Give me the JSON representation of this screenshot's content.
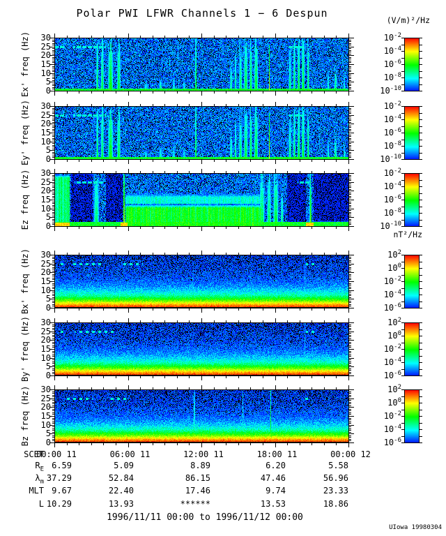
{
  "title": "Polar PWI LFWR Channels 1 − 6 Despun",
  "footer_range": "1996/11/11 00:00 to 1996/11/12 00:00",
  "credit": "UIowa 19980304",
  "chart_data": {
    "type": "heatmap",
    "description": "Six 24-hour frequency-time spectrogram panels (0-30 Hz) of Polar PWI LFWR channels: Ex', Ey', Ez electric field spectral density in (V/m)^2/Hz and Bx', By', Bz magnetic field spectral density in nT^2/Hz, 1996/11/11 00:00 to 1996/11/12 00:00 UT.",
    "x_axis": {
      "label": "SCET",
      "ticks": [
        "00:00 11",
        "06:00 11",
        "12:00 11",
        "18:00 11",
        "00:00 12"
      ],
      "range_hours": [
        0,
        24
      ],
      "minor_tick_hours": 1
    },
    "y_axis": {
      "ticks": [
        30,
        25,
        20,
        15,
        10,
        5,
        0
      ],
      "range_hz": [
        0,
        30
      ],
      "minor_tick_hz": 1
    },
    "colorbars": {
      "base": "10",
      "electric": {
        "unit": "(V/m)²/Hz",
        "exponents": [
          "-2",
          "-4",
          "-6",
          "-8",
          "-10"
        ]
      },
      "magnetic": {
        "unit": "nT²/Hz",
        "exponents": [
          "2",
          "0",
          "-2",
          "-4",
          "-6"
        ]
      }
    },
    "colormap": "rainbow (blue=low, red=high, black=below scale)",
    "panels": [
      {
        "name": "ex",
        "label": "Ex' freq (Hz)",
        "kind": "E",
        "seed": 101,
        "colorbar": "electric",
        "line25": [
          [
            0.0,
            0.032
          ],
          [
            0.062,
            0.175
          ],
          [
            0.79,
            0.845
          ]
        ],
        "darks": [],
        "patches": [],
        "bottom_hot": [],
        "bottom_height": 1.4,
        "bursts": [
          [
            0.145,
            0.008,
            30,
            0.5
          ],
          [
            0.162,
            0.012,
            30,
            0.48
          ],
          [
            0.19,
            0.02,
            30,
            0.55
          ],
          [
            0.218,
            0.014,
            30,
            0.5
          ],
          [
            0.31,
            0.01,
            5,
            0.38
          ],
          [
            0.36,
            0.012,
            7,
            0.4
          ],
          [
            0.405,
            0.008,
            8,
            0.38
          ],
          [
            0.44,
            0.01,
            6,
            0.36
          ],
          [
            0.48,
            0.004,
            30,
            0.7
          ],
          [
            0.6,
            0.01,
            16,
            0.42
          ],
          [
            0.615,
            0.008,
            20,
            0.45
          ],
          [
            0.632,
            0.012,
            24,
            0.47
          ],
          [
            0.65,
            0.015,
            28,
            0.5
          ],
          [
            0.667,
            0.01,
            30,
            0.52
          ],
          [
            0.685,
            0.015,
            30,
            0.52
          ],
          [
            0.73,
            0.004,
            30,
            0.72
          ],
          [
            0.8,
            0.01,
            22,
            0.45
          ],
          [
            0.815,
            0.008,
            30,
            0.5
          ],
          [
            0.83,
            0.01,
            30,
            0.52
          ],
          [
            0.845,
            0.012,
            30,
            0.52
          ],
          [
            0.862,
            0.008,
            30,
            0.5
          ],
          [
            0.93,
            0.008,
            10,
            0.4
          ],
          [
            0.955,
            0.01,
            14,
            0.45
          ],
          [
            0.985,
            0.008,
            8,
            0.38
          ]
        ]
      },
      {
        "name": "ey",
        "label": "Ey' freq (Hz)",
        "kind": "E",
        "seed": 202,
        "colorbar": "electric",
        "line25": [
          [
            0.0,
            0.032
          ],
          [
            0.062,
            0.175
          ],
          [
            0.79,
            0.845
          ]
        ],
        "darks": [],
        "patches": [],
        "bottom_hot": [],
        "bottom_height": 1.4,
        "bursts": [
          [
            0.145,
            0.008,
            30,
            0.5
          ],
          [
            0.162,
            0.012,
            30,
            0.48
          ],
          [
            0.19,
            0.02,
            30,
            0.55
          ],
          [
            0.218,
            0.014,
            30,
            0.5
          ],
          [
            0.31,
            0.01,
            5,
            0.38
          ],
          [
            0.36,
            0.012,
            7,
            0.4
          ],
          [
            0.405,
            0.008,
            8,
            0.38
          ],
          [
            0.44,
            0.01,
            6,
            0.36
          ],
          [
            0.48,
            0.004,
            30,
            0.7
          ],
          [
            0.6,
            0.01,
            16,
            0.42
          ],
          [
            0.615,
            0.008,
            20,
            0.45
          ],
          [
            0.632,
            0.012,
            24,
            0.47
          ],
          [
            0.65,
            0.015,
            28,
            0.5
          ],
          [
            0.667,
            0.01,
            30,
            0.52
          ],
          [
            0.685,
            0.015,
            30,
            0.52
          ],
          [
            0.73,
            0.004,
            30,
            0.72
          ],
          [
            0.8,
            0.01,
            22,
            0.45
          ],
          [
            0.815,
            0.008,
            30,
            0.5
          ],
          [
            0.83,
            0.01,
            30,
            0.52
          ],
          [
            0.845,
            0.012,
            30,
            0.52
          ],
          [
            0.862,
            0.008,
            30,
            0.5
          ],
          [
            0.93,
            0.008,
            10,
            0.4
          ],
          [
            0.955,
            0.01,
            14,
            0.45
          ],
          [
            0.985,
            0.008,
            8,
            0.38
          ]
        ]
      },
      {
        "name": "ez",
        "label": "Ez freq (Hz)",
        "kind": "E",
        "seed": 303,
        "colorbar": "electric",
        "line25": [
          [
            0.0,
            0.04
          ],
          [
            0.068,
            0.165
          ],
          [
            0.825,
            0.87
          ]
        ],
        "darks": [
          [
            0.055,
            0.128
          ],
          [
            0.175,
            0.232
          ],
          [
            0.79,
            0.855
          ],
          [
            0.88,
            1.0
          ]
        ],
        "patches": [
          [
            0.0,
            0.05,
            0,
            30,
            0.4
          ],
          [
            0.24,
            0.7,
            0,
            13,
            0.5
          ],
          [
            0.24,
            0.7,
            13,
            19,
            0.32
          ],
          [
            0.88,
            1.0,
            0,
            3.5,
            0.4
          ]
        ],
        "bottom_hot": [
          [
            0.0,
            0.05
          ],
          [
            0.225,
            0.248
          ],
          [
            0.855,
            0.88
          ]
        ],
        "bottom_height": 2.6,
        "bursts": [
          [
            0.142,
            0.022,
            30,
            0.45
          ],
          [
            0.236,
            0.006,
            30,
            0.8
          ],
          [
            0.705,
            0.02,
            30,
            0.5
          ],
          [
            0.729,
            0.016,
            26,
            0.5
          ],
          [
            0.752,
            0.02,
            30,
            0.52
          ],
          [
            0.773,
            0.01,
            20,
            0.45
          ],
          [
            0.87,
            0.008,
            28,
            0.65
          ]
        ]
      },
      {
        "name": "bx",
        "label": "Bx' freq (Hz)",
        "kind": "B",
        "seed": 404,
        "colorbar": "magnetic",
        "line25": [
          [
            0.008,
            0.035
          ],
          [
            0.055,
            0.16
          ],
          [
            0.225,
            0.3
          ],
          [
            0.855,
            0.885
          ]
        ],
        "darks": [],
        "patches": [],
        "bottom_hot": [],
        "bottom_height": 0,
        "bursts": [
          [
            0.47,
            0.004,
            28,
            0.3
          ],
          [
            0.851,
            0.005,
            28,
            0.3
          ]
        ]
      },
      {
        "name": "by",
        "label": "By' freq (Hz)",
        "kind": "B",
        "seed": 505,
        "colorbar": "magnetic",
        "line25": [
          [
            0.01,
            0.04
          ],
          [
            0.07,
            0.2
          ],
          [
            0.855,
            0.885
          ]
        ],
        "darks": [],
        "patches": [],
        "bottom_hot": [],
        "bottom_height": 0,
        "bursts": [
          [
            0.851,
            0.005,
            28,
            0.34
          ]
        ]
      },
      {
        "name": "bz",
        "label": "Bz freq (Hz)",
        "kind": "B",
        "seed": 606,
        "colorbar": "magnetic",
        "line25": [
          [
            0.04,
            0.13
          ],
          [
            0.185,
            0.245
          ],
          [
            0.84,
            0.862
          ]
        ],
        "darks": [],
        "patches": [],
        "bottom_hot": [],
        "bottom_height": 0,
        "bursts": [
          [
            0.475,
            0.004,
            30,
            0.52
          ],
          [
            0.64,
            0.004,
            30,
            0.36
          ],
          [
            0.735,
            0.004,
            30,
            0.6
          ]
        ]
      }
    ],
    "ephemeris": {
      "rows": [
        {
          "label": "R",
          "sub": "E",
          "values": [
            "6.59",
            "5.09",
            "8.89",
            "6.20",
            "5.58"
          ]
        },
        {
          "label": "λ",
          "sub": "m",
          "values": [
            "37.29",
            "52.84",
            "86.15",
            "47.46",
            "56.96"
          ]
        },
        {
          "label": "MLT",
          "sub": "",
          "values": [
            "9.67",
            "22.40",
            "17.46",
            "9.74",
            "23.33"
          ]
        },
        {
          "label": "L",
          "sub": "",
          "values": [
            "10.29",
            "13.93",
            "******",
            "13.53",
            "18.86"
          ]
        }
      ]
    }
  }
}
